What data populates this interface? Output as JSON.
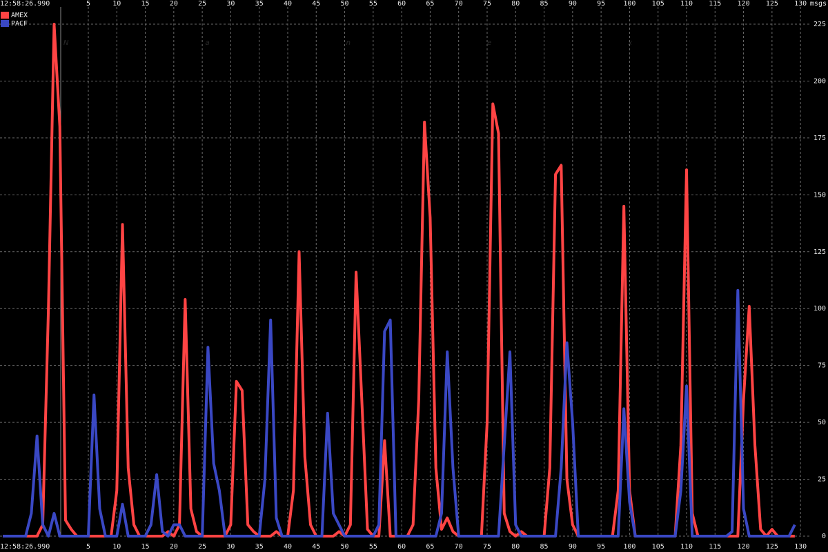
{
  "chart_data": {
    "type": "line",
    "watermark": "Nanex",
    "time_label": "12:58:26.990",
    "y_unit": "msgs",
    "x": [
      -10,
      -9,
      -8,
      -7,
      -6,
      -5,
      -4,
      -3,
      -2,
      -1,
      0,
      1,
      2,
      3,
      4,
      5,
      6,
      7,
      8,
      9,
      10,
      11,
      12,
      13,
      14,
      15,
      16,
      17,
      18,
      19,
      20,
      21,
      22,
      23,
      24,
      25,
      26,
      27,
      28,
      29,
      30,
      31,
      32,
      33,
      34,
      35,
      36,
      37,
      38,
      39,
      40,
      41,
      42,
      43,
      44,
      45,
      46,
      47,
      48,
      49,
      50,
      51,
      52,
      53,
      54,
      55,
      56,
      57,
      58,
      59,
      60,
      61,
      62,
      63,
      64,
      65,
      66,
      67,
      68,
      69,
      70,
      71,
      72,
      73,
      74,
      75,
      76,
      77,
      78,
      79,
      80,
      81,
      82,
      83,
      84,
      85,
      86,
      87,
      88,
      89,
      90,
      91,
      92,
      93,
      94,
      95,
      96,
      97,
      98,
      99,
      100,
      101,
      102,
      103,
      104,
      105,
      106,
      107,
      108,
      109,
      110,
      111,
      112,
      113,
      114,
      115,
      116,
      117,
      118,
      119,
      120,
      121,
      122,
      123,
      124,
      125,
      126,
      127,
      128,
      129
    ],
    "series": [
      {
        "name": "AMEX",
        "color": "#ff4444",
        "values": [
          0,
          0,
          0,
          0,
          0,
          0,
          0,
          5,
          100,
          225,
          180,
          7,
          3,
          0,
          0,
          0,
          0,
          0,
          0,
          0,
          20,
          137,
          30,
          5,
          0,
          0,
          0,
          0,
          0,
          2,
          0,
          5,
          104,
          12,
          2,
          0,
          0,
          0,
          0,
          0,
          5,
          68,
          64,
          5,
          2,
          0,
          0,
          0,
          2,
          0,
          0,
          20,
          125,
          35,
          5,
          0,
          0,
          0,
          0,
          2,
          0,
          5,
          116,
          60,
          3,
          0,
          0,
          42,
          0,
          0,
          0,
          0,
          5,
          60,
          182,
          140,
          30,
          3,
          8,
          2,
          0,
          0,
          0,
          0,
          0,
          50,
          190,
          177,
          10,
          2,
          0,
          2,
          0,
          0,
          0,
          0,
          30,
          159,
          163,
          25,
          5,
          0,
          0,
          0,
          0,
          0,
          0,
          0,
          20,
          145,
          20,
          0,
          0,
          0,
          0,
          0,
          0,
          0,
          0,
          40,
          161,
          10,
          0,
          0,
          0,
          0,
          0,
          0,
          0,
          0,
          60,
          101,
          40,
          3,
          0,
          3,
          0,
          0,
          0,
          0
        ]
      },
      {
        "name": "PACF",
        "color": "#3a48c4",
        "values": [
          0,
          0,
          0,
          0,
          0,
          10,
          44,
          5,
          0,
          10,
          0,
          0,
          0,
          0,
          0,
          0,
          62,
          12,
          0,
          0,
          0,
          14,
          0,
          0,
          0,
          0,
          5,
          27,
          2,
          0,
          5,
          5,
          0,
          0,
          0,
          0,
          83,
          32,
          20,
          0,
          0,
          0,
          0,
          0,
          0,
          0,
          25,
          95,
          8,
          0,
          0,
          0,
          0,
          0,
          0,
          0,
          0,
          54,
          10,
          5,
          0,
          0,
          0,
          0,
          0,
          0,
          5,
          90,
          95,
          0,
          0,
          0,
          0,
          0,
          0,
          0,
          0,
          10,
          81,
          30,
          0,
          0,
          0,
          0,
          0,
          0,
          0,
          0,
          40,
          81,
          5,
          0,
          0,
          0,
          0,
          0,
          0,
          0,
          30,
          85,
          50,
          0,
          0,
          0,
          0,
          0,
          0,
          0,
          0,
          56,
          15,
          0,
          0,
          0,
          0,
          0,
          0,
          0,
          0,
          20,
          66,
          0,
          0,
          0,
          0,
          0,
          0,
          0,
          2,
          108,
          12,
          0,
          0,
          0,
          0,
          0,
          0,
          0,
          0,
          5
        ]
      }
    ],
    "xlim": [
      -10.5,
      131.8
    ],
    "ylim": [
      0,
      232.6
    ],
    "xticks": [
      5,
      10,
      15,
      20,
      25,
      30,
      35,
      40,
      45,
      50,
      55,
      60,
      65,
      70,
      75,
      80,
      85,
      90,
      95,
      100,
      105,
      110,
      115,
      120,
      125,
      130
    ],
    "yticks": [
      0,
      25,
      50,
      75,
      100,
      125,
      150,
      175,
      200,
      225
    ],
    "grid": true
  }
}
